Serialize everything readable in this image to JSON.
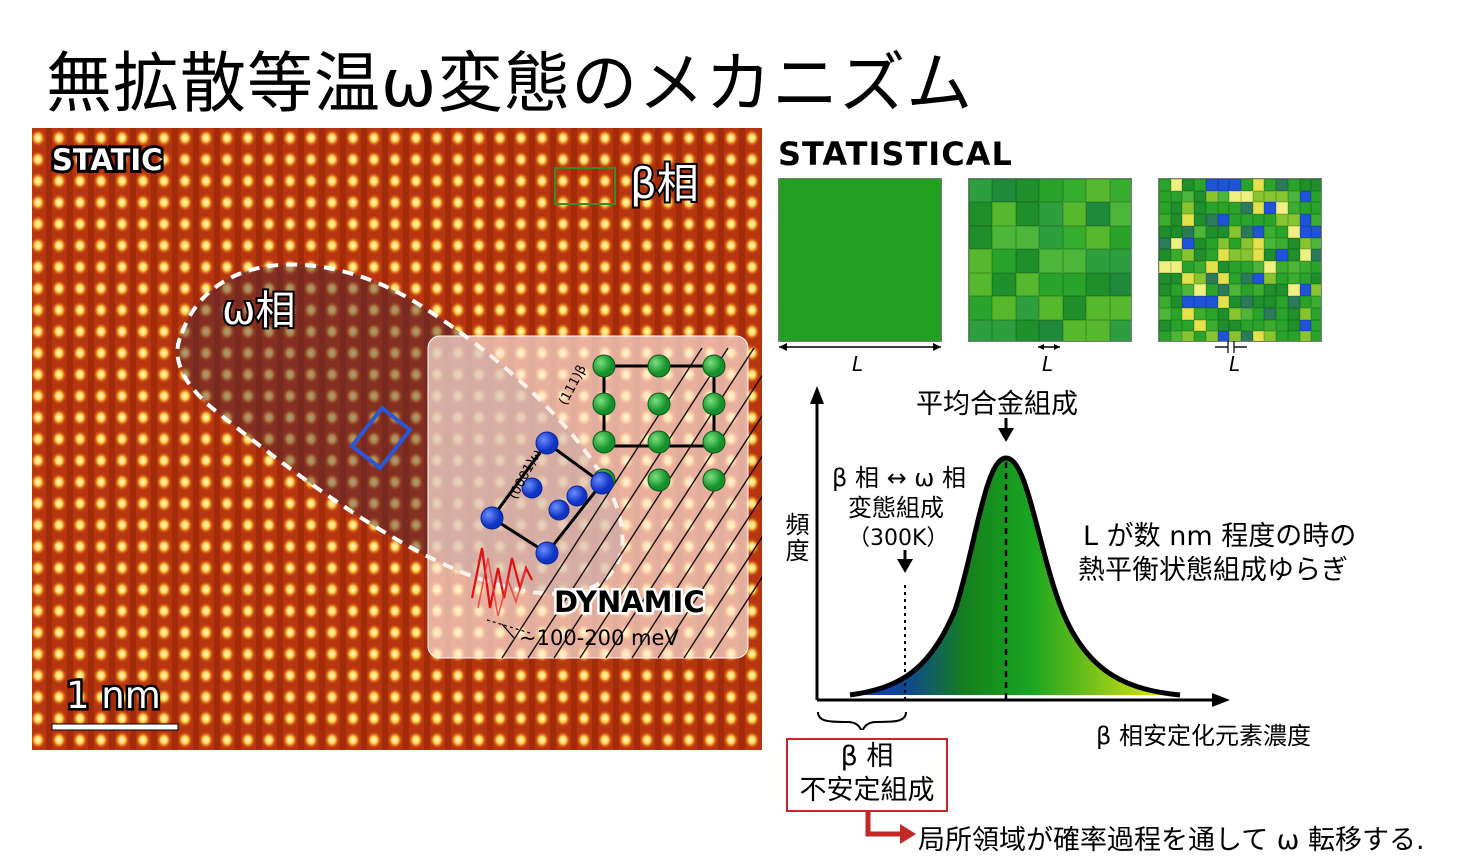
{
  "title": "無拡散等温ω変態のメカニズム",
  "lattice": {
    "static_label": "STATIC",
    "beta_label": "β相",
    "omega_label": "ω相",
    "scale_label": "1 nm",
    "dynamic_label": "DYNAMIC",
    "energy_label": "~100-200 meV",
    "plane_beta": "(111)β",
    "plane_omega": "(0001)ω"
  },
  "statistical": {
    "label": "STATISTICAL",
    "length_label": "L"
  },
  "distribution": {
    "mean_label": "平均合金組成",
    "transform_line1": "β 相 ↔ ω 相",
    "transform_line2": "変態組成",
    "transform_line3": "（300K）",
    "y_axis": "頻度",
    "x_axis": "β 相安定化元素濃度",
    "fluct_line1": "L が数 nm 程度の時の",
    "fluct_line2": "熱平衡状態組成ゆらぎ"
  },
  "callout": {
    "line1": "β 相",
    "line2": "不安定組成",
    "note": "局所領域が確率過程を通して ω 転移する."
  },
  "colors": {
    "lattice_bg": "#b8360f",
    "atom_hot": "#fff1a0",
    "green_atom": "#22a83a",
    "blue_atom": "#1c4fe0",
    "accent_red": "#c62828"
  }
}
